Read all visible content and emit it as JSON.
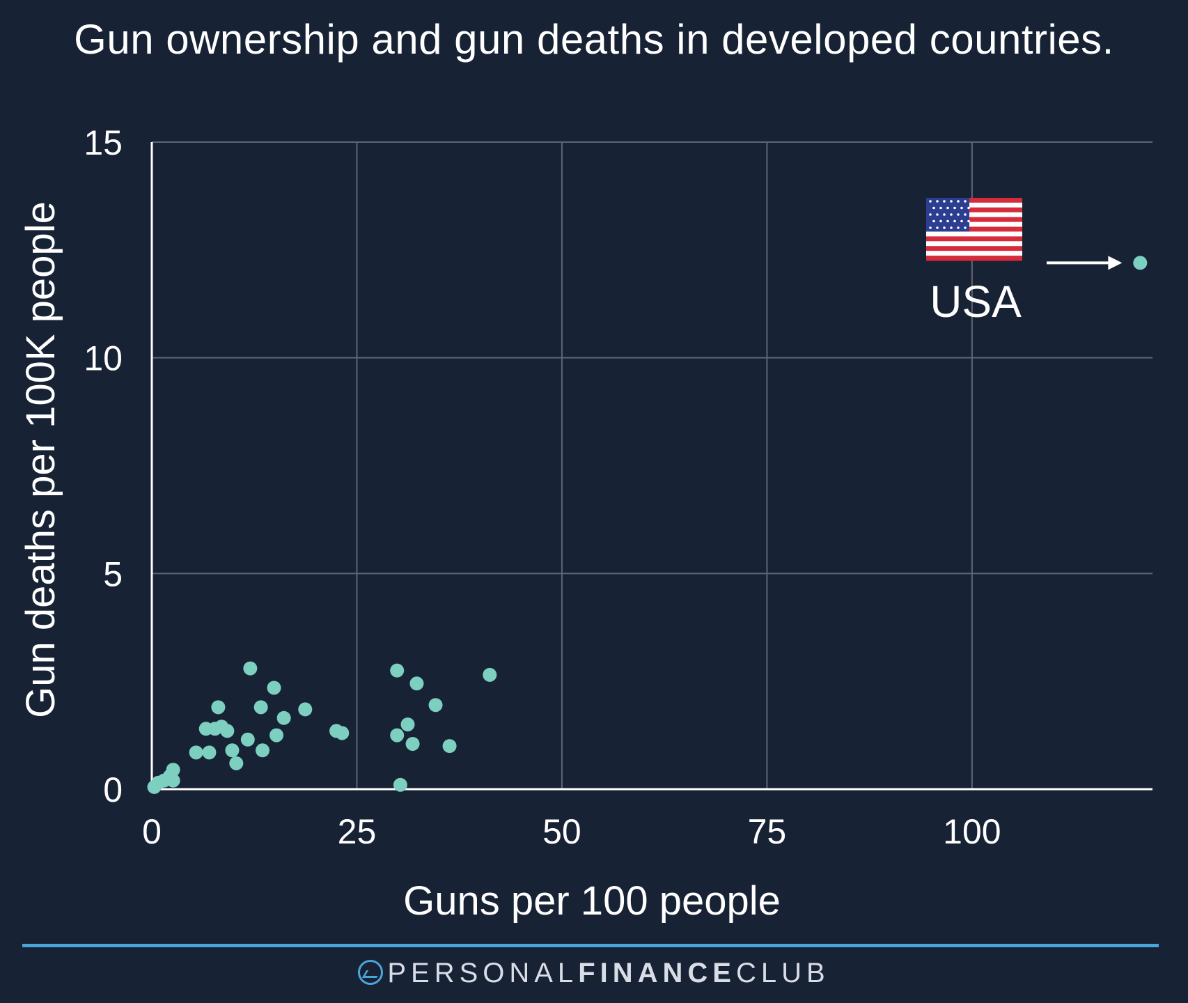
{
  "title": "Gun ownership and gun deaths in developed countries.",
  "footer": {
    "brand_light_1": "PERSONAL",
    "brand_bold": "FINANCE",
    "brand_light_2": "CLUB",
    "logo_icon": "growth-chart-logo-icon",
    "line_color": "#4aa6d8"
  },
  "chart_data": {
    "type": "scatter",
    "xlabel": "Guns per 100 people",
    "ylabel": "Gun deaths per 100K people",
    "xlim": [
      0,
      122
    ],
    "ylim": [
      0,
      15
    ],
    "x_ticks": [
      0,
      25,
      50,
      75,
      100
    ],
    "y_ticks": [
      0,
      5,
      10,
      15
    ],
    "grid": true,
    "point_color": "#7dcfc0",
    "points": [
      {
        "x": 0.3,
        "y": 0.05
      },
      {
        "x": 0.8,
        "y": 0.15
      },
      {
        "x": 1.5,
        "y": 0.2
      },
      {
        "x": 2.2,
        "y": 0.3
      },
      {
        "x": 2.6,
        "y": 0.2
      },
      {
        "x": 2.6,
        "y": 0.45
      },
      {
        "x": 5.4,
        "y": 0.85
      },
      {
        "x": 6.6,
        "y": 1.4
      },
      {
        "x": 7.0,
        "y": 0.85
      },
      {
        "x": 7.7,
        "y": 1.4
      },
      {
        "x": 8.1,
        "y": 1.9
      },
      {
        "x": 8.5,
        "y": 1.45
      },
      {
        "x": 9.2,
        "y": 1.35
      },
      {
        "x": 9.8,
        "y": 0.9
      },
      {
        "x": 10.3,
        "y": 0.6
      },
      {
        "x": 11.7,
        "y": 1.15
      },
      {
        "x": 12.0,
        "y": 2.8
      },
      {
        "x": 13.3,
        "y": 1.9
      },
      {
        "x": 13.5,
        "y": 0.9
      },
      {
        "x": 14.9,
        "y": 2.35
      },
      {
        "x": 15.2,
        "y": 1.25
      },
      {
        "x": 16.1,
        "y": 1.65
      },
      {
        "x": 18.7,
        "y": 1.85
      },
      {
        "x": 22.5,
        "y": 1.35
      },
      {
        "x": 23.2,
        "y": 1.3
      },
      {
        "x": 29.9,
        "y": 1.25
      },
      {
        "x": 29.9,
        "y": 2.75
      },
      {
        "x": 30.3,
        "y": 0.1
      },
      {
        "x": 31.2,
        "y": 1.5
      },
      {
        "x": 31.8,
        "y": 1.05
      },
      {
        "x": 32.3,
        "y": 2.45
      },
      {
        "x": 34.6,
        "y": 1.95
      },
      {
        "x": 36.3,
        "y": 1.0
      },
      {
        "x": 41.2,
        "y": 2.65
      },
      {
        "x": 120.5,
        "y": 12.2
      }
    ],
    "annotation": {
      "label": "USA",
      "flag_icon": "usa-flag-icon",
      "arrow_icon": "right-arrow-icon"
    }
  }
}
